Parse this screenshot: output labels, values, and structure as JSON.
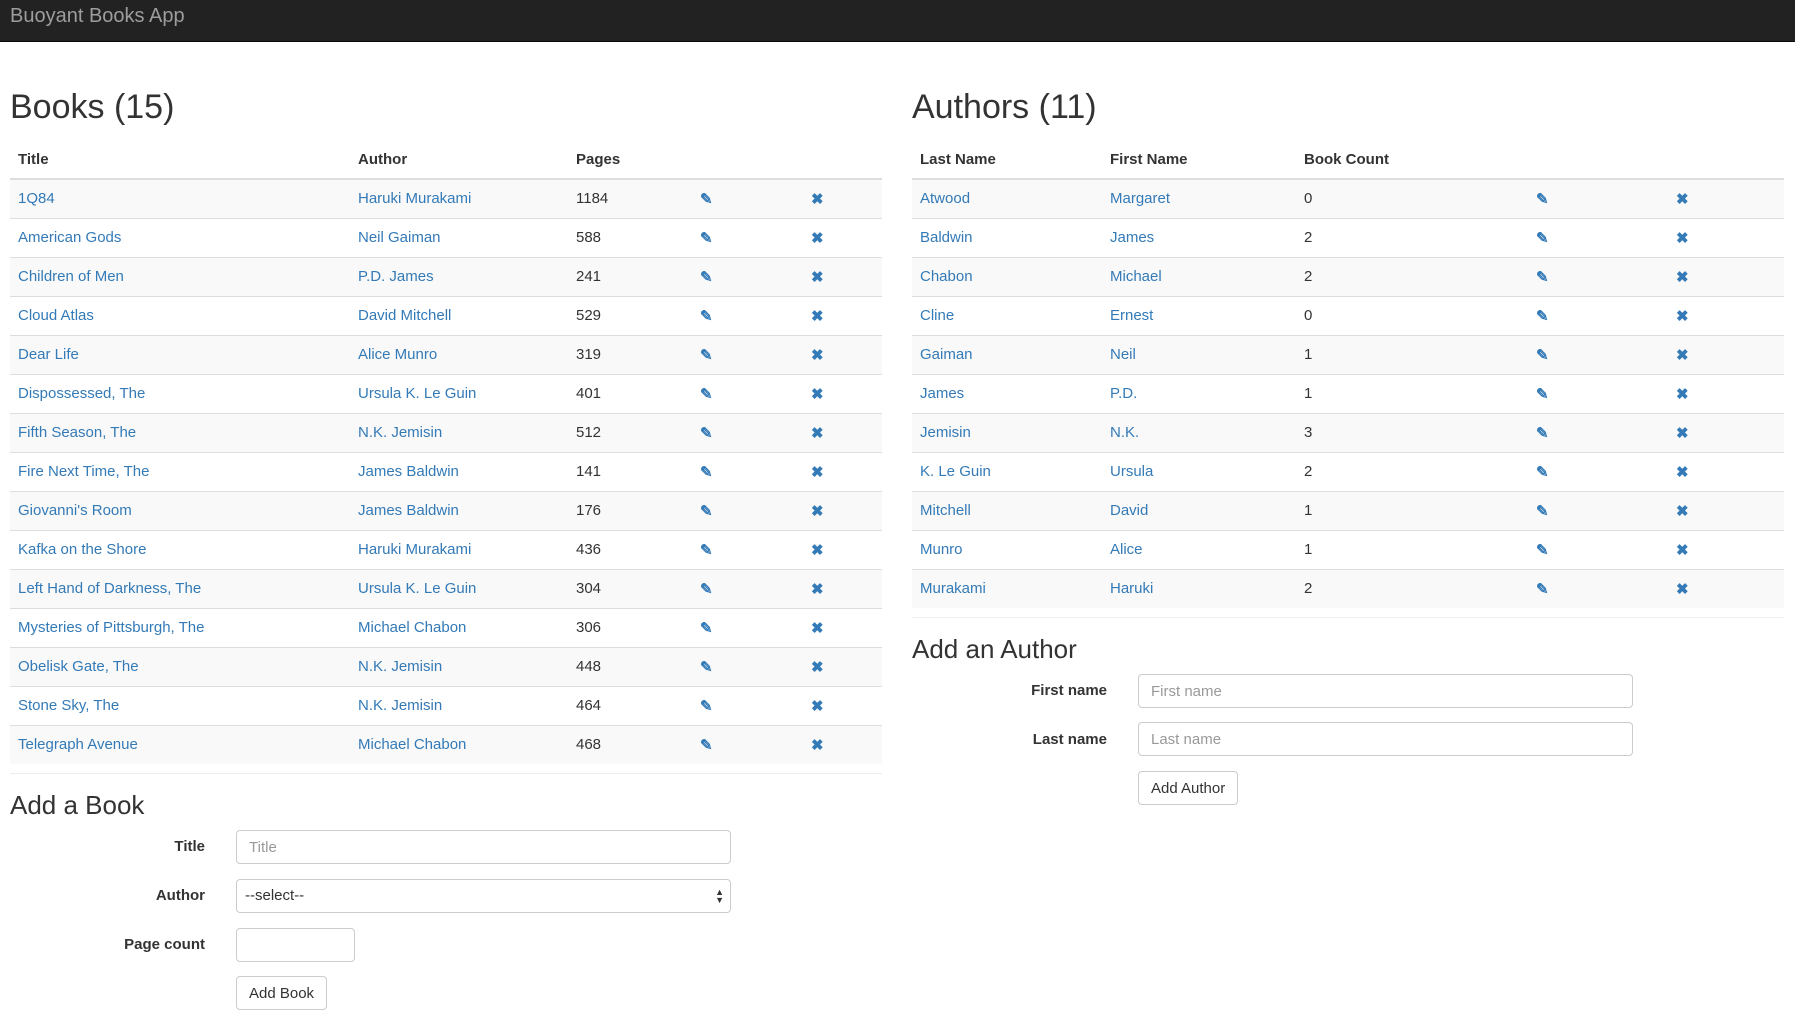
{
  "app": {
    "title": "Buoyant Books App"
  },
  "books": {
    "heading": "Books (15)",
    "columns": [
      "Title",
      "Author",
      "Pages"
    ],
    "rows": [
      {
        "title": "1Q84",
        "author": "Haruki Murakami",
        "pages": "1184"
      },
      {
        "title": "American Gods",
        "author": "Neil Gaiman",
        "pages": "588"
      },
      {
        "title": "Children of Men",
        "author": "P.D. James",
        "pages": "241"
      },
      {
        "title": "Cloud Atlas",
        "author": "David Mitchell",
        "pages": "529"
      },
      {
        "title": "Dear Life",
        "author": "Alice Munro",
        "pages": "319"
      },
      {
        "title": "Dispossessed, The",
        "author": "Ursula K. Le Guin",
        "pages": "401"
      },
      {
        "title": "Fifth Season, The",
        "author": "N.K. Jemisin",
        "pages": "512"
      },
      {
        "title": "Fire Next Time, The",
        "author": "James Baldwin",
        "pages": "141"
      },
      {
        "title": "Giovanni's Room",
        "author": "James Baldwin",
        "pages": "176"
      },
      {
        "title": "Kafka on the Shore",
        "author": "Haruki Murakami",
        "pages": "436"
      },
      {
        "title": "Left Hand of Darkness, The",
        "author": "Ursula K. Le Guin",
        "pages": "304"
      },
      {
        "title": "Mysteries of Pittsburgh, The",
        "author": "Michael Chabon",
        "pages": "306"
      },
      {
        "title": "Obelisk Gate, The",
        "author": "N.K. Jemisin",
        "pages": "448"
      },
      {
        "title": "Stone Sky, The",
        "author": "N.K. Jemisin",
        "pages": "464"
      },
      {
        "title": "Telegraph Avenue",
        "author": "Michael Chabon",
        "pages": "468"
      }
    ]
  },
  "authors": {
    "heading": "Authors (11)",
    "columns": [
      "Last Name",
      "First Name",
      "Book Count"
    ],
    "rows": [
      {
        "last": "Atwood",
        "first": "Margaret",
        "count": "0"
      },
      {
        "last": "Baldwin",
        "first": "James",
        "count": "2"
      },
      {
        "last": "Chabon",
        "first": "Michael",
        "count": "2"
      },
      {
        "last": "Cline",
        "first": "Ernest",
        "count": "0"
      },
      {
        "last": "Gaiman",
        "first": "Neil",
        "count": "1"
      },
      {
        "last": "James",
        "first": "P.D.",
        "count": "1"
      },
      {
        "last": "Jemisin",
        "first": "N.K.",
        "count": "3"
      },
      {
        "last": "K. Le Guin",
        "first": "Ursula",
        "count": "2"
      },
      {
        "last": "Mitchell",
        "first": "David",
        "count": "1"
      },
      {
        "last": "Munro",
        "first": "Alice",
        "count": "1"
      },
      {
        "last": "Murakami",
        "first": "Haruki",
        "count": "2"
      }
    ]
  },
  "icons": {
    "edit": "✎",
    "delete": "✖"
  },
  "add_book": {
    "heading": "Add a Book",
    "title_label": "Title",
    "title_placeholder": "Title",
    "author_label": "Author",
    "author_selected": "--select--",
    "pages_label": "Page count",
    "button": "Add Book"
  },
  "add_author": {
    "heading": "Add an Author",
    "first_label": "First name",
    "first_placeholder": "First name",
    "last_label": "Last name",
    "last_placeholder": "Last name",
    "button": "Add Author"
  },
  "colors": {
    "link": "#337ab7",
    "navbar": "#222222"
  }
}
